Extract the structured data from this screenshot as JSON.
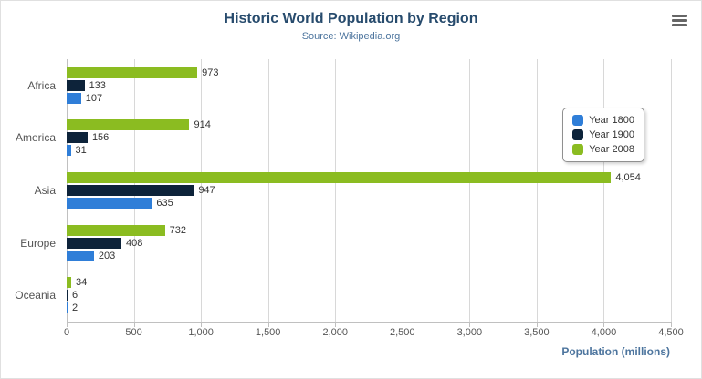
{
  "chart_data": {
    "type": "bar",
    "title": "Historic World Population by Region",
    "subtitle": "Source: Wikipedia.org",
    "categories": [
      "Africa",
      "America",
      "Asia",
      "Europe",
      "Oceania"
    ],
    "series": [
      {
        "name": "Year 1800",
        "color": "#2f7ed8",
        "values": [
          107,
          31,
          635,
          203,
          2
        ]
      },
      {
        "name": "Year 1900",
        "color": "#0d233a",
        "values": [
          133,
          156,
          947,
          408,
          6
        ]
      },
      {
        "name": "Year 2008",
        "color": "#8bbc21",
        "values": [
          973,
          914,
          4054,
          732,
          34
        ]
      }
    ],
    "xlabel": "Population (millions)",
    "xlim": [
      0,
      4500
    ],
    "xticks": [
      "0",
      "500",
      "1,000",
      "1,500",
      "2,000",
      "2,500",
      "3,000",
      "3,500",
      "4,000",
      "4,500"
    ],
    "legend_position": "right",
    "grid": true,
    "title_color": "#274b6d",
    "subtitle_color": "#4d759e"
  },
  "icons": {
    "menu": "hamburger-menu-icon"
  }
}
